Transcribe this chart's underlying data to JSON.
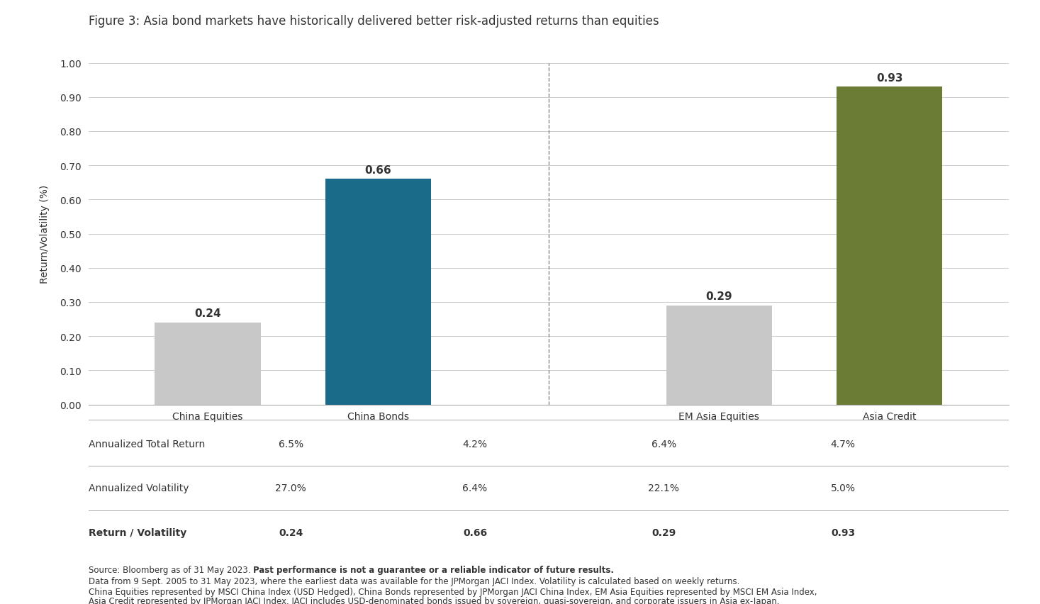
{
  "title": "Figure 3: Asia bond markets have historically delivered better risk-adjusted returns than equities",
  "categories": [
    "China Equities",
    "China Bonds",
    "EM Asia Equities",
    "Asia Credit"
  ],
  "values": [
    0.24,
    0.66,
    0.29,
    0.93
  ],
  "bar_colors": [
    "#c8c8c8",
    "#1a6b8a",
    "#c8c8c8",
    "#6b7c35"
  ],
  "ylabel": "Return/Volatility (%)",
  "ylim": [
    0.0,
    1.0
  ],
  "yticks": [
    0.0,
    0.1,
    0.2,
    0.3,
    0.4,
    0.5,
    0.6,
    0.7,
    0.8,
    0.9,
    1.0
  ],
  "ytick_labels": [
    "0.00",
    "0.10",
    "0.20",
    "0.30",
    "0.40",
    "0.50",
    "0.60",
    "0.70",
    "0.80",
    "0.90",
    "1.00"
  ],
  "table_col_labels": [
    "",
    "China Equities",
    "China Bonds",
    "EM Asia Equities",
    "Asia Credit"
  ],
  "table_rows": [
    [
      "Annualized Total Return",
      "6.5%",
      "4.2%",
      "6.4%",
      "4.7%"
    ],
    [
      "Annualized Volatility",
      "27.0%",
      "6.4%",
      "22.1%",
      "5.0%"
    ],
    [
      "Return / Volatility",
      "0.24",
      "0.66",
      "0.29",
      "0.93"
    ]
  ],
  "table_bold_row": 2,
  "footnote_line1_normal": "Source: Bloomberg as of 31 May 2023. ",
  "footnote_line1_bold": "Past performance is not a guarantee or a reliable indicator of future results.",
  "footnote_line2": "Data from 9 Sept. 2005 to 31 May 2023, where the earliest data was available for the JPMorgan JACI Index. Volatility is calculated based on weekly returns.",
  "footnote_line3": "China Equities represented by MSCI China Index (USD Hedged), China Bonds represented by JPMorgan JACI China Index, EM Asia Equities represented by MSCI EM Asia Index,",
  "footnote_line4": "Asia Credit represented by JPMorgan JACI Index. JACI includes USD-denominated bonds issued by sovereign, quasi-sovereign, and corporate issuers in Asia ex-Japan.",
  "background_color": "#ffffff",
  "grid_color": "#cccccc",
  "line_color": "#aaaaaa",
  "text_color": "#333333"
}
